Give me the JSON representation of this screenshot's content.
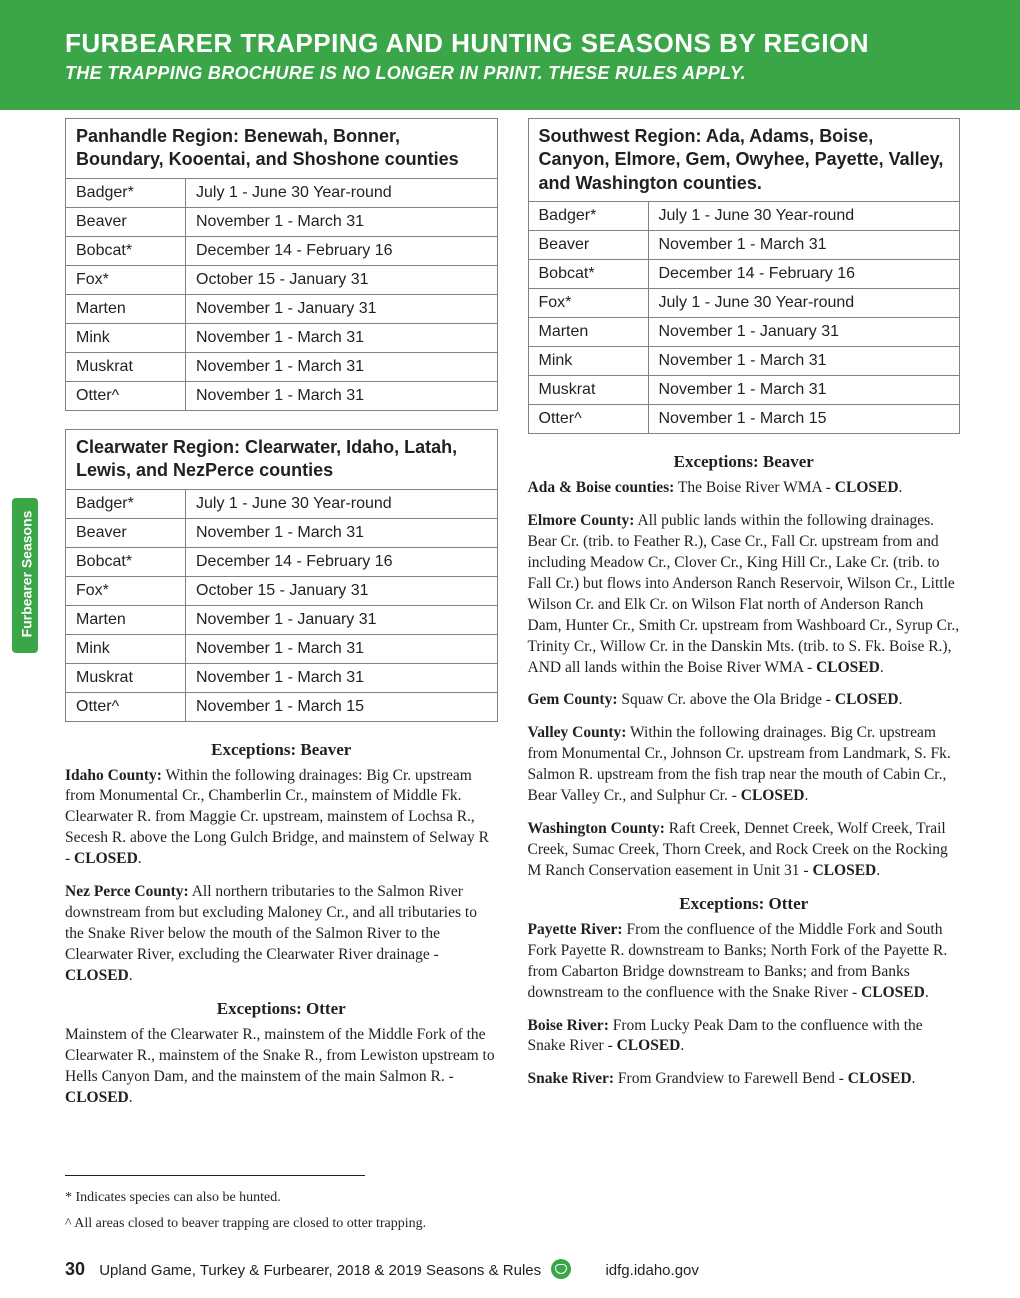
{
  "header": {
    "title": "FURBEARER TRAPPING AND HUNTING SEASONS BY REGION",
    "subtitle": "THE TRAPPING BROCHURE IS NO LONGER IN PRINT. THESE RULES APPLY."
  },
  "side_tab": "Furbearer Seasons",
  "regions": {
    "panhandle": {
      "heading": "Panhandle Region: Benewah, Bonner, Boundary, Kooentai, and Shoshone counties",
      "rows": [
        [
          "Badger*",
          "July 1 - June 30 Year-round"
        ],
        [
          "Beaver",
          "November 1 - March 31"
        ],
        [
          "Bobcat*",
          "December 14 - February 16"
        ],
        [
          "Fox*",
          "October 15 - January 31"
        ],
        [
          "Marten",
          "November 1 - January 31"
        ],
        [
          "Mink",
          "November 1 - March 31"
        ],
        [
          "Muskrat",
          "November 1 - March 31"
        ],
        [
          "Otter^",
          "November 1 - March 31"
        ]
      ]
    },
    "clearwater": {
      "heading": "Clearwater Region: Clearwater, Idaho, Latah, Lewis, and NezPerce counties",
      "rows": [
        [
          "Badger*",
          "July 1 - June 30 Year-round"
        ],
        [
          "Beaver",
          "November 1 - March 31"
        ],
        [
          "Bobcat*",
          "December 14 - February 16"
        ],
        [
          "Fox*",
          "October 15 - January 31"
        ],
        [
          "Marten",
          "November 1 - January 31"
        ],
        [
          "Mink",
          "November 1 - March 31"
        ],
        [
          "Muskrat",
          "November 1 - March 31"
        ],
        [
          "Otter^",
          "November 1 - March 15"
        ]
      ]
    },
    "southwest": {
      "heading": "Southwest Region: Ada, Adams, Boise, Canyon, Elmore, Gem, Owyhee, Payette, Valley, and Washington counties.",
      "rows": [
        [
          "Badger*",
          "July 1 - June 30 Year-round"
        ],
        [
          "Beaver",
          "November 1 - March 31"
        ],
        [
          "Bobcat*",
          "December 14 - February 16"
        ],
        [
          "Fox*",
          "July 1 - June 30 Year-round"
        ],
        [
          "Marten",
          "November 1 - January 31"
        ],
        [
          "Mink",
          "November 1 - March 31"
        ],
        [
          "Muskrat",
          "November 1 - March 31"
        ],
        [
          "Otter^",
          "November 1 - March 15"
        ]
      ]
    }
  },
  "exc": {
    "cw_beaver_head": "Exceptions: Beaver",
    "cw_beaver_idaho_l": "Idaho County:",
    "cw_beaver_idaho": " Within the following drainages: Big Cr. upstream from Monumental Cr., Chamberlin Cr., mainstem of Middle Fk. Clearwater R. from Maggie Cr. upstream, mainstem of Lochsa R., Secesh R. above the Long Gulch Bridge, and mainstem of Selway R - ",
    "cw_beaver_nez_l": "Nez Perce County:",
    "cw_beaver_nez": " All northern tributaries to the Salmon River downstream from but excluding Maloney Cr., and all tributaries to the Snake River below the mouth of the Salmon River to the Clearwater River, excluding the Clearwater River drainage - ",
    "cw_otter_head": "Exceptions: Otter",
    "cw_otter": "Mainstem of the Clearwater R., mainstem of the Middle Fork of the Clearwater R., mainstem of the Snake R., from Lewiston upstream to Hells Canyon Dam, and the mainstem of the main Salmon R. - ",
    "sw_beaver_head": "Exceptions: Beaver",
    "sw_ada_l": "Ada & Boise counties:",
    "sw_ada": " The Boise River WMA - ",
    "sw_elmore_l": "Elmore County:",
    "sw_elmore": " All public lands within the following drainages. Bear Cr. (trib. to Feather R.), Case Cr., Fall Cr. upstream from and including Meadow Cr., Clover Cr., King Hill Cr., Lake Cr. (trib. to Fall Cr.) but flows into Anderson Ranch Reservoir, Wilson Cr., Little Wilson Cr. and Elk Cr. on Wilson Flat north of Anderson Ranch Dam, Hunter Cr., Smith Cr. upstream from Washboard Cr., Syrup Cr., Trinity Cr., Willow Cr. in the Danskin Mts. (trib. to S. Fk. Boise R.), AND all lands within the Boise River WMA - ",
    "sw_gem_l": "Gem County:",
    "sw_gem": " Squaw Cr. above the Ola Bridge - ",
    "sw_valley_l": "Valley County:",
    "sw_valley": " Within the following drainages. Big Cr. upstream from Monumental Cr., Johnson Cr. upstream from Landmark, S. Fk. Salmon R. upstream from the fish trap near the mouth of Cabin Cr., Bear Valley Cr., and Sulphur Cr. - ",
    "sw_wash_l": "Washington County:",
    "sw_wash": " Raft Creek, Dennet Creek, Wolf Creek, Trail Creek, Sumac Creek, Thorn Creek, and Rock Creek on the Rocking M Ranch Conservation easement in Unit 31 - ",
    "sw_otter_head": "Exceptions: Otter",
    "sw_payette_l": "Payette River:",
    "sw_payette": " From the confluence of the Middle Fork and South Fork Payette R. downstream to Banks; North Fork of the Payette R. from Cabarton Bridge downstream to Banks; and from Banks downstream to the confluence with the Snake River - ",
    "sw_boise_l": "Boise River:",
    "sw_boise": " From Lucky Peak Dam to the confluence with the Snake River - ",
    "sw_snake_l": "Snake River:",
    "sw_snake": " From Grandview to Farewell Bend - ",
    "closed": "CLOSED"
  },
  "footnotes": {
    "star": "*  Indicates species can also be hunted.",
    "caret": "^ All areas closed to beaver trapping are closed to otter trapping."
  },
  "footer": {
    "page_num": "30",
    "pub": "Upland Game, Turkey & Furbearer, 2018 & 2019 Seasons & Rules",
    "site": "idfg.idaho.gov"
  }
}
